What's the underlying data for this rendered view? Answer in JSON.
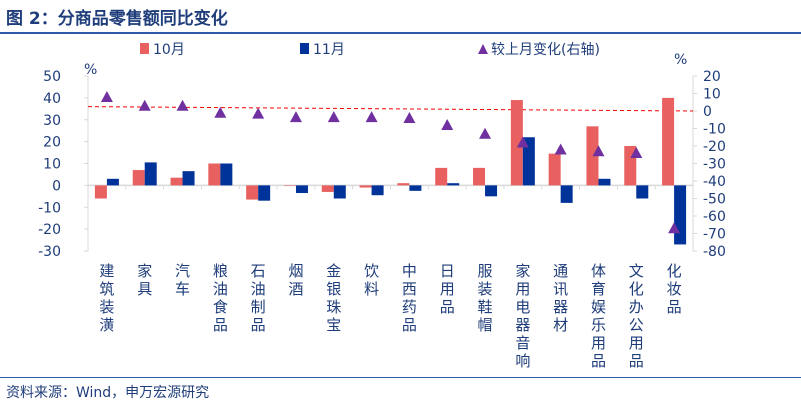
{
  "title": "图 2：分商品零售额同比变化",
  "source": "资料来源：Wind，申万宏源研究",
  "chart_data": {
    "type": "bar",
    "categories": [
      "建筑装潢",
      "家具",
      "汽车",
      "粮油食品",
      "石油制品",
      "烟酒",
      "金银珠宝",
      "饮料",
      "中西药品",
      "日用品",
      "服装鞋帽",
      "家用电器音响",
      "通讯器材",
      "体育娱乐用品",
      "文化办公用品",
      "化妆品"
    ],
    "series": [
      {
        "name": "10月",
        "axis": "left",
        "type": "bar",
        "color": "#e86060",
        "values": [
          -6,
          7,
          3.5,
          10,
          -6.5,
          0,
          -3,
          -1,
          1,
          8,
          8,
          39,
          14.5,
          27,
          18,
          40
        ]
      },
      {
        "name": "11月",
        "axis": "left",
        "type": "bar",
        "color": "#003399",
        "values": [
          3,
          10.5,
          6.5,
          10,
          -7,
          -3.5,
          -6,
          -4.5,
          -2.5,
          1,
          -5,
          22,
          -8,
          3,
          -6,
          -27
        ]
      },
      {
        "name": "较上月变化(右轴)",
        "axis": "right",
        "type": "scatter",
        "marker": "triangle",
        "color": "#7030a0",
        "values": [
          8,
          3,
          3,
          -1,
          -1.5,
          -3.5,
          -3.5,
          -3.5,
          -4,
          -8,
          -13,
          -18,
          -22,
          -23,
          -24,
          -67
        ]
      }
    ],
    "reference_line": {
      "axis": "right",
      "style": "dashed",
      "color": "#ff0000",
      "from": 2.5,
      "to": 0
    },
    "left_axis": {
      "unit": "%",
      "ylim": [
        -30,
        50
      ],
      "ticks": [
        50,
        40,
        30,
        20,
        10,
        0,
        -10,
        -20,
        -30
      ]
    },
    "right_axis": {
      "unit": "%",
      "ylim": [
        -80,
        20
      ],
      "ticks": [
        20,
        10,
        0,
        -10,
        -20,
        -30,
        -40,
        -50,
        -60,
        -70,
        -80
      ]
    },
    "legend_placement": "top",
    "grid": false
  }
}
